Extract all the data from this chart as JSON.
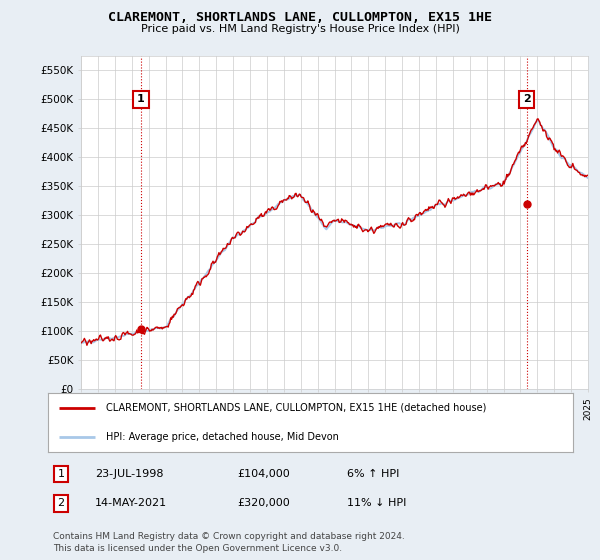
{
  "title": "CLAREMONT, SHORTLANDS LANE, CULLOMPTON, EX15 1HE",
  "subtitle": "Price paid vs. HM Land Registry's House Price Index (HPI)",
  "ylim": [
    0,
    575000
  ],
  "yticks": [
    0,
    50000,
    100000,
    150000,
    200000,
    250000,
    300000,
    350000,
    400000,
    450000,
    500000,
    550000
  ],
  "ytick_labels": [
    "£0",
    "£50K",
    "£100K",
    "£150K",
    "£200K",
    "£250K",
    "£300K",
    "£350K",
    "£400K",
    "£450K",
    "£500K",
    "£550K"
  ],
  "hpi_color": "#a8c8e8",
  "price_color": "#cc0000",
  "background_color": "#e8eef4",
  "plot_bg_color": "#ffffff",
  "grid_color": "#cccccc",
  "sale1_year": 1998.55,
  "sale1_price": 104000,
  "sale2_year": 2021.37,
  "sale2_price": 320000,
  "legend_line1": "CLAREMONT, SHORTLANDS LANE, CULLOMPTON, EX15 1HE (detached house)",
  "legend_line2": "HPI: Average price, detached house, Mid Devon",
  "note1_label": "1",
  "note1_date": "23-JUL-1998",
  "note1_price": "£104,000",
  "note1_hpi": "6% ↑ HPI",
  "note2_label": "2",
  "note2_date": "14-MAY-2021",
  "note2_price": "£320,000",
  "note2_hpi": "11% ↓ HPI",
  "footer": "Contains HM Land Registry data © Crown copyright and database right 2024.\nThis data is licensed under the Open Government Licence v3.0."
}
